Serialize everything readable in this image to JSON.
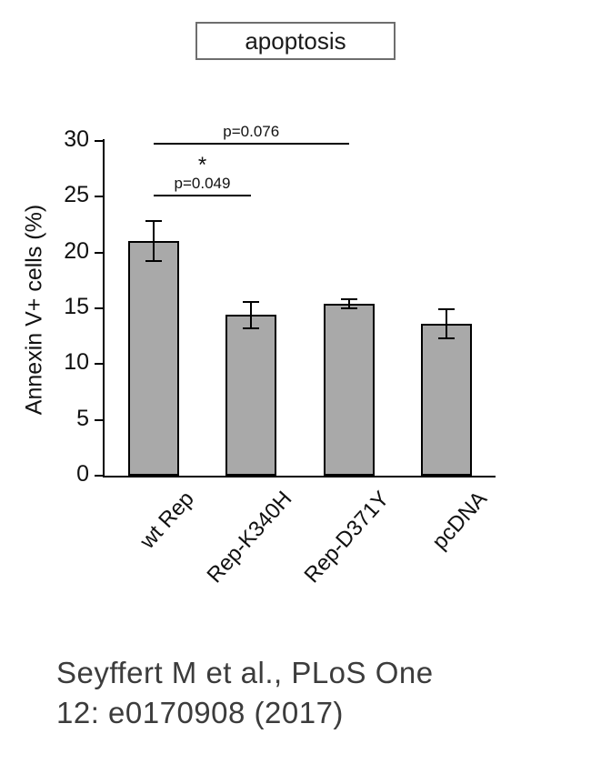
{
  "chart_data": {
    "type": "bar",
    "title": "apoptosis",
    "xlabel": "",
    "ylabel": "Annexin V+ cells (%)",
    "ylim": [
      0,
      30
    ],
    "yticks": [
      0,
      5,
      10,
      15,
      20,
      25,
      30
    ],
    "grid": false,
    "legend": "none",
    "categories": [
      "wt Rep",
      "Rep-K340H",
      "Rep-D371Y",
      "pcDNA"
    ],
    "values": [
      21.0,
      14.4,
      15.4,
      13.6
    ],
    "errors": [
      1.8,
      1.2,
      0.4,
      1.3
    ],
    "bar_color": "#a9a9a9",
    "bar_edge_color": "#000000",
    "annotations": [
      {
        "label": "p=0.076",
        "from": 0,
        "to": 2,
        "y": 29.8,
        "star": false
      },
      {
        "label": "p=0.049",
        "from": 0,
        "to": 1,
        "y": 25.2,
        "star": true
      }
    ]
  },
  "citation": {
    "lines": [
      "Seyffert M et al., PLoS One",
      "12: e0170908 (2017)"
    ]
  }
}
